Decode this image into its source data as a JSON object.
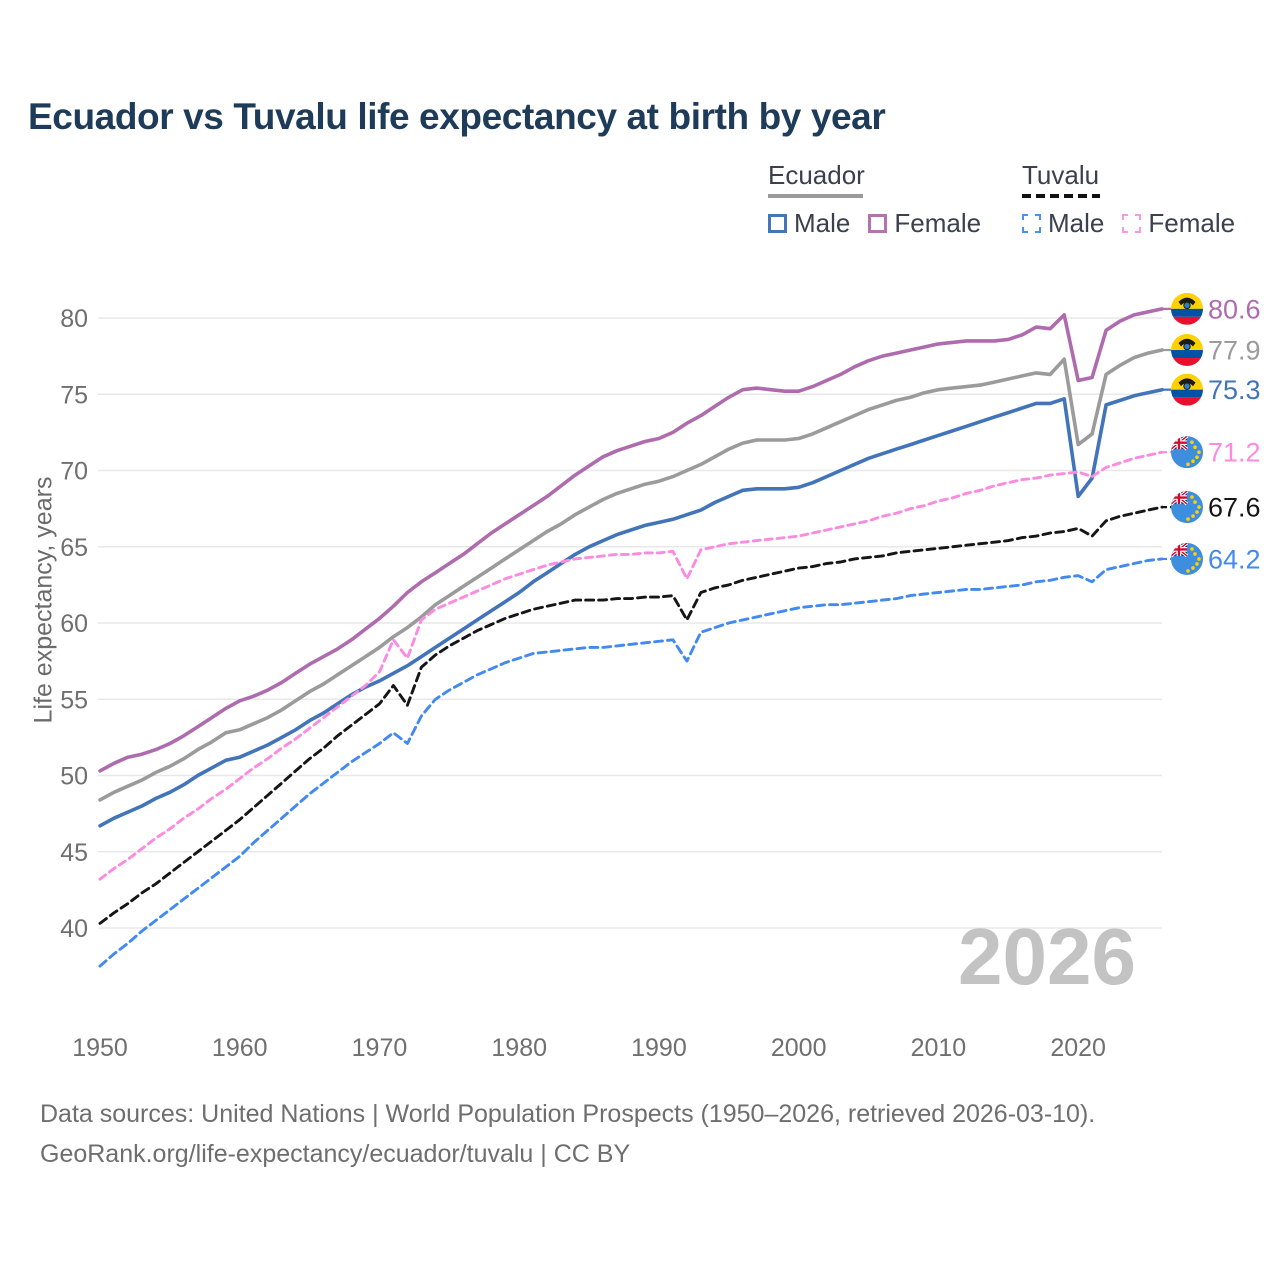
{
  "title": "Ecuador vs Tuvalu life expectancy at birth by year",
  "watermark": "2026",
  "legend": {
    "ecuador": {
      "label": "Ecuador",
      "male": "Male",
      "female": "Female"
    },
    "tuvalu": {
      "label": "Tuvalu",
      "male": "Male",
      "female": "Female"
    }
  },
  "y_axis": {
    "label": "Life expectancy, years",
    "ticks": [
      40,
      45,
      50,
      55,
      60,
      65,
      70,
      75,
      80
    ],
    "range": [
      36.5,
      82
    ]
  },
  "x_axis": {
    "ticks": [
      1950,
      1960,
      1970,
      1980,
      1990,
      2000,
      2010,
      2020
    ],
    "range": [
      1950,
      2026
    ]
  },
  "footer": {
    "line1": "Data sources: United Nations | World Population Prospects (1950–2026, retrieved 2026-03-10).",
    "line2": "GeoRank.org/life-expectancy/ecuador/tuvalu | CC BY"
  },
  "colors": {
    "title_text": "#1e3b5a",
    "gridline": "#e8e8e8",
    "tick_text": "#6f6f6f",
    "watermark": "#c3c3c3",
    "legend_text": "#39414e",
    "footer_text": "#6e6e6e"
  },
  "chart_data": {
    "type": "line",
    "title": "Ecuador vs Tuvalu life expectancy at birth by year",
    "ylabel": "Life expectancy, years",
    "ylim": [
      36.5,
      82
    ],
    "xlim": [
      1950,
      2026
    ],
    "grid": "horizontal",
    "legend_position": "top-right",
    "x": [
      1950,
      1951,
      1952,
      1953,
      1954,
      1955,
      1956,
      1957,
      1958,
      1959,
      1960,
      1961,
      1962,
      1963,
      1964,
      1965,
      1966,
      1967,
      1968,
      1969,
      1970,
      1971,
      1972,
      1973,
      1974,
      1975,
      1976,
      1977,
      1978,
      1979,
      1980,
      1981,
      1982,
      1983,
      1984,
      1985,
      1986,
      1987,
      1988,
      1989,
      1990,
      1991,
      1992,
      1993,
      1994,
      1995,
      1996,
      1997,
      1998,
      1999,
      2000,
      2001,
      2002,
      2003,
      2004,
      2005,
      2006,
      2007,
      2008,
      2009,
      2010,
      2011,
      2012,
      2013,
      2014,
      2015,
      2016,
      2017,
      2018,
      2019,
      2020,
      2021,
      2022,
      2023,
      2024,
      2025,
      2026
    ],
    "series": [
      {
        "id": "ecuador-female",
        "name": "Ecuador Female",
        "country": "ecuador",
        "color": "#ae6cae",
        "dash": null,
        "end_label": "80.6",
        "values": [
          50.3,
          50.8,
          51.2,
          51.4,
          51.7,
          52.1,
          52.6,
          53.2,
          53.8,
          54.4,
          54.9,
          55.2,
          55.6,
          56.1,
          56.7,
          57.3,
          57.8,
          58.3,
          58.9,
          59.6,
          60.3,
          61.1,
          62.0,
          62.7,
          63.3,
          63.9,
          64.5,
          65.2,
          65.9,
          66.5,
          67.1,
          67.7,
          68.3,
          69.0,
          69.7,
          70.3,
          70.9,
          71.3,
          71.6,
          71.9,
          72.1,
          72.5,
          73.1,
          73.6,
          74.2,
          74.8,
          75.3,
          75.4,
          75.3,
          75.2,
          75.2,
          75.5,
          75.9,
          76.3,
          76.8,
          77.2,
          77.5,
          77.7,
          77.9,
          78.1,
          78.3,
          78.4,
          78.5,
          78.5,
          78.5,
          78.6,
          78.9,
          79.4,
          79.3,
          80.2,
          75.9,
          76.1,
          79.2,
          79.8,
          80.2,
          80.4,
          80.6
        ]
      },
      {
        "id": "ecuador-total",
        "name": "Ecuador",
        "country": "ecuador",
        "color": "#9b9b9b",
        "dash": null,
        "end_label": "77.9",
        "values": [
          48.4,
          48.9,
          49.3,
          49.7,
          50.2,
          50.6,
          51.1,
          51.7,
          52.2,
          52.8,
          53.0,
          53.4,
          53.8,
          54.3,
          54.9,
          55.5,
          56.0,
          56.6,
          57.2,
          57.8,
          58.4,
          59.1,
          59.7,
          60.4,
          61.2,
          61.8,
          62.4,
          63.0,
          63.6,
          64.2,
          64.8,
          65.4,
          66.0,
          66.5,
          67.1,
          67.6,
          68.1,
          68.5,
          68.8,
          69.1,
          69.3,
          69.6,
          70.0,
          70.4,
          70.9,
          71.4,
          71.8,
          72.0,
          72.0,
          72.0,
          72.1,
          72.4,
          72.8,
          73.2,
          73.6,
          74.0,
          74.3,
          74.6,
          74.8,
          75.1,
          75.3,
          75.4,
          75.5,
          75.6,
          75.8,
          76.0,
          76.2,
          76.4,
          76.3,
          77.3,
          71.7,
          72.4,
          76.3,
          76.9,
          77.4,
          77.7,
          77.9
        ]
      },
      {
        "id": "ecuador-male",
        "name": "Ecuador Male",
        "country": "ecuador",
        "color": "#4274b9",
        "dash": null,
        "end_label": "75.3",
        "values": [
          46.7,
          47.2,
          47.6,
          48.0,
          48.5,
          48.9,
          49.4,
          50.0,
          50.5,
          51.0,
          51.2,
          51.6,
          52.0,
          52.5,
          53.0,
          53.6,
          54.1,
          54.7,
          55.3,
          55.8,
          56.2,
          56.7,
          57.2,
          57.8,
          58.4,
          59.0,
          59.6,
          60.2,
          60.8,
          61.4,
          62.0,
          62.7,
          63.3,
          63.9,
          64.5,
          65.0,
          65.4,
          65.8,
          66.1,
          66.4,
          66.6,
          66.8,
          67.1,
          67.4,
          67.9,
          68.3,
          68.7,
          68.8,
          68.8,
          68.8,
          68.9,
          69.2,
          69.6,
          70.0,
          70.4,
          70.8,
          71.1,
          71.4,
          71.7,
          72.0,
          72.3,
          72.6,
          72.9,
          73.2,
          73.5,
          73.8,
          74.1,
          74.4,
          74.4,
          74.7,
          68.3,
          69.5,
          74.3,
          74.6,
          74.9,
          75.1,
          75.3
        ]
      },
      {
        "id": "tuvalu-total",
        "name": "Tuvalu",
        "country": "tuvalu",
        "color": "#151515",
        "dash": "8 5",
        "end_label": "67.6",
        "values": [
          40.3,
          41.0,
          41.6,
          42.3,
          42.9,
          43.6,
          44.3,
          45.0,
          45.7,
          46.4,
          47.1,
          47.9,
          48.7,
          49.5,
          50.3,
          51.1,
          51.8,
          52.6,
          53.3,
          54.0,
          54.7,
          55.9,
          54.6,
          57.1,
          57.9,
          58.5,
          59.0,
          59.5,
          59.9,
          60.3,
          60.6,
          60.9,
          61.1,
          61.3,
          61.5,
          61.5,
          61.5,
          61.6,
          61.6,
          61.7,
          61.7,
          61.8,
          60.2,
          62.0,
          62.3,
          62.5,
          62.8,
          63.0,
          63.2,
          63.4,
          63.6,
          63.7,
          63.9,
          64.0,
          64.2,
          64.3,
          64.4,
          64.6,
          64.7,
          64.8,
          64.9,
          65.0,
          65.1,
          65.2,
          65.3,
          65.4,
          65.6,
          65.7,
          65.9,
          66.0,
          66.2,
          65.7,
          66.7,
          67.0,
          67.2,
          67.4,
          67.6
        ]
      },
      {
        "id": "tuvalu-male",
        "name": "Tuvalu Male",
        "country": "tuvalu",
        "color": "#4289f0",
        "dash": "8 5",
        "end_label": "64.2",
        "values": [
          37.5,
          38.3,
          39.0,
          39.8,
          40.5,
          41.2,
          41.9,
          42.6,
          43.3,
          44.0,
          44.7,
          45.6,
          46.4,
          47.2,
          48.0,
          48.8,
          49.5,
          50.2,
          50.9,
          51.5,
          52.1,
          52.8,
          52.1,
          53.9,
          55.0,
          55.6,
          56.1,
          56.6,
          57.0,
          57.4,
          57.7,
          58.0,
          58.1,
          58.2,
          58.3,
          58.4,
          58.4,
          58.5,
          58.6,
          58.7,
          58.8,
          58.9,
          57.5,
          59.4,
          59.7,
          60.0,
          60.2,
          60.4,
          60.6,
          60.8,
          61.0,
          61.1,
          61.2,
          61.2,
          61.3,
          61.4,
          61.5,
          61.6,
          61.8,
          61.9,
          62.0,
          62.1,
          62.2,
          62.2,
          62.3,
          62.4,
          62.5,
          62.7,
          62.8,
          63.0,
          63.1,
          62.7,
          63.5,
          63.7,
          63.9,
          64.1,
          64.2
        ]
      },
      {
        "id": "tuvalu-female",
        "name": "Tuvalu Female",
        "country": "tuvalu",
        "color": "#fb8ae0",
        "dash": "7 5",
        "end_label": "71.2",
        "values": [
          43.2,
          43.9,
          44.5,
          45.2,
          45.9,
          46.5,
          47.2,
          47.8,
          48.5,
          49.1,
          49.8,
          50.5,
          51.1,
          51.8,
          52.4,
          53.1,
          53.8,
          54.5,
          55.2,
          55.9,
          56.8,
          58.9,
          57.7,
          60.2,
          60.9,
          61.3,
          61.7,
          62.1,
          62.5,
          62.9,
          63.2,
          63.5,
          63.8,
          64.0,
          64.2,
          64.3,
          64.4,
          64.5,
          64.5,
          64.6,
          64.6,
          64.7,
          62.9,
          64.8,
          65.0,
          65.2,
          65.3,
          65.4,
          65.5,
          65.6,
          65.7,
          65.9,
          66.1,
          66.3,
          66.5,
          66.7,
          67.0,
          67.2,
          67.5,
          67.7,
          68.0,
          68.2,
          68.5,
          68.7,
          69.0,
          69.2,
          69.4,
          69.5,
          69.7,
          69.8,
          69.9,
          69.6,
          70.2,
          70.5,
          70.8,
          71.0,
          71.2
        ]
      }
    ]
  }
}
